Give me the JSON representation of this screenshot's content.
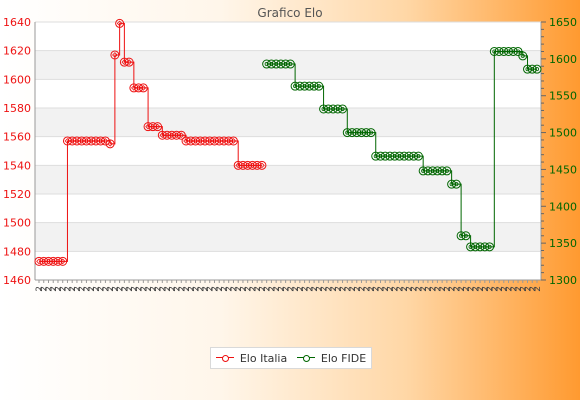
{
  "chart_data": {
    "type": "line",
    "title": "Grafico Elo",
    "colors": {
      "italia": "#ee1111",
      "fide": "#006600"
    },
    "left_axis": {
      "min": 1460,
      "max": 1640,
      "ticks": [
        1460,
        1480,
        1500,
        1520,
        1540,
        1560,
        1580,
        1600,
        1620,
        1640
      ]
    },
    "right_axis": {
      "min": 1300,
      "max": 1650,
      "ticks": [
        1300,
        1350,
        1400,
        1450,
        1500,
        1550,
        1600,
        1650
      ]
    },
    "x_labels_left": [
      "2",
      "2",
      "2",
      "2",
      "2",
      "2",
      "2",
      "2",
      "2",
      "2",
      "2",
      "2",
      "2",
      "2",
      "2",
      "2",
      "2",
      "2",
      "2",
      "2",
      "2",
      "2",
      "2",
      "2",
      "2",
      "2",
      "2",
      "2",
      "2",
      "2",
      "2",
      "2",
      "2",
      "2",
      "2",
      "2",
      "2",
      "2",
      "2",
      "2",
      "2",
      "2",
      "2",
      "2",
      "2",
      "2",
      "2",
      "2"
    ],
    "x_labels_right": [
      "2",
      "2",
      "2",
      "2",
      "2",
      "2",
      "2",
      "2",
      "2",
      "2",
      "2",
      "2",
      "2",
      "2",
      "2",
      "2",
      "2",
      "2",
      "2",
      "2",
      "2",
      "2",
      "2",
      "2",
      "2",
      "2",
      "2",
      "2",
      "2",
      "2",
      "2",
      "2",
      "2",
      "2",
      "2",
      "2",
      "2",
      "2",
      "2",
      "2",
      "2",
      "2",
      "2",
      "2",
      "2",
      "2",
      "2",
      "2",
      "2",
      "2",
      "2",
      "2",
      "2",
      "2",
      "2",
      "2",
      "2",
      "2"
    ],
    "series": [
      {
        "name": "Elo Italia",
        "axis": "left",
        "x": [
          0,
          1,
          2,
          3,
          4,
          5,
          6,
          7,
          8,
          9,
          10,
          11,
          12,
          13,
          14,
          15,
          16,
          17,
          18,
          19,
          20,
          21,
          22,
          23,
          24,
          25,
          26,
          27,
          28,
          29,
          30,
          31,
          32,
          33,
          34,
          35,
          36,
          37,
          38,
          39,
          40,
          41,
          42,
          43,
          44,
          45,
          46,
          47
        ],
        "values": [
          1473,
          1473,
          1473,
          1473,
          1473,
          1473,
          1557,
          1557,
          1557,
          1557,
          1557,
          1557,
          1557,
          1557,
          1557,
          1555,
          1617,
          1639,
          1612,
          1612,
          1594,
          1594,
          1594,
          1567,
          1567,
          1567,
          1561,
          1561,
          1561,
          1561,
          1561,
          1557,
          1557,
          1557,
          1557,
          1557,
          1557,
          1557,
          1557,
          1557,
          1557,
          1557,
          1540,
          1540,
          1540,
          1540,
          1540,
          1540
        ]
      },
      {
        "name": "Elo FIDE",
        "axis": "right",
        "x": [
          48,
          49,
          50,
          51,
          52,
          53,
          54,
          55,
          56,
          57,
          58,
          59,
          60,
          61,
          62,
          63,
          64,
          65,
          66,
          67,
          68,
          69,
          70,
          71,
          72,
          73,
          74,
          75,
          76,
          77,
          78,
          79,
          80,
          81,
          82,
          83,
          84,
          85,
          86,
          87,
          88,
          89,
          90,
          91,
          92,
          93,
          94,
          95,
          96,
          97,
          98,
          99,
          100,
          101,
          102,
          103,
          104,
          105
        ],
        "values": [
          1593,
          1593,
          1593,
          1593,
          1593,
          1593,
          1563,
          1563,
          1563,
          1563,
          1563,
          1563,
          1532,
          1532,
          1532,
          1532,
          1532,
          1500,
          1500,
          1500,
          1500,
          1500,
          1500,
          1468,
          1468,
          1468,
          1468,
          1468,
          1468,
          1468,
          1468,
          1468,
          1468,
          1448,
          1448,
          1448,
          1448,
          1448,
          1448,
          1430,
          1430,
          1360,
          1360,
          1345,
          1345,
          1345,
          1345,
          1345,
          1610,
          1610,
          1610,
          1610,
          1610,
          1610,
          1604,
          1586,
          1586,
          1586
        ]
      }
    ],
    "grid": true,
    "legend": "bottom"
  }
}
